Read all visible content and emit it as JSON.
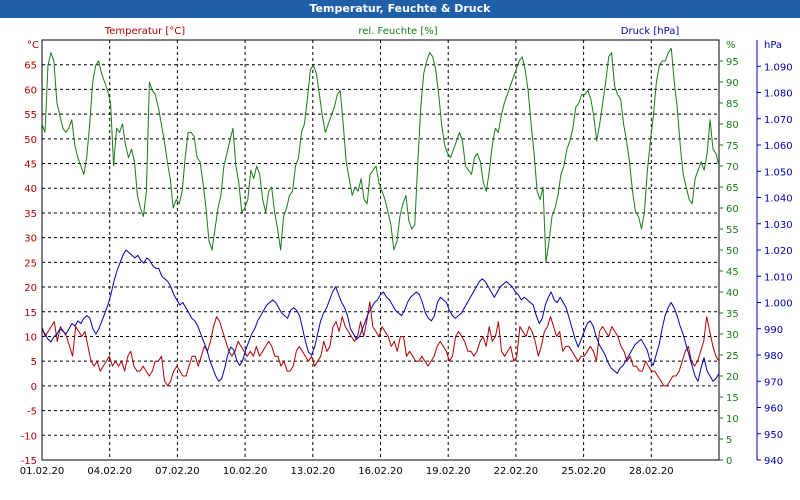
{
  "window": {
    "title": "Temperatur, Feuchte & Druck"
  },
  "chart_data": {
    "type": "line",
    "title": "Temperatur, Feuchte & Druck",
    "grid": true,
    "x_axis": {
      "range": [
        "01.02.20",
        "02.03.20"
      ],
      "tick_labels": [
        "01.02.20",
        "04.02.20",
        "07.02.20",
        "10.02.20",
        "13.02.20",
        "16.02.20",
        "19.02.20",
        "22.02.20",
        "25.02.20",
        "28.02.20"
      ]
    },
    "axes": {
      "temperature": {
        "label": "Temperatur [°C]",
        "unit": "°C",
        "range": [
          -15,
          70
        ],
        "ticks": [
          -15,
          -10,
          -5,
          0,
          5,
          10,
          15,
          20,
          25,
          30,
          35,
          40,
          45,
          50,
          55,
          60,
          65
        ],
        "color": "#b00000"
      },
      "humidity": {
        "label": "rel. Feuchte [%]",
        "unit": "%",
        "range": [
          0,
          100
        ],
        "ticks": [
          0,
          5,
          10,
          15,
          20,
          25,
          30,
          35,
          40,
          45,
          50,
          55,
          60,
          65,
          70,
          75,
          80,
          85,
          90,
          95
        ],
        "color": "#1a7a1a"
      },
      "pressure": {
        "label": "Druck [hPa]",
        "unit": "hPa",
        "range": [
          940,
          1100
        ],
        "ticks": [
          "940",
          "950",
          "960",
          "970",
          "980",
          "990",
          "1.000",
          "1.010",
          "1.020",
          "1.030",
          "1.040",
          "1.050",
          "1.060",
          "1.070",
          "1.080",
          "1.090"
        ],
        "color": "#0000b0"
      }
    },
    "series": [
      {
        "name": "Temperatur [°C]",
        "axis": "temperature",
        "color": "#b00000",
        "values": [
          12,
          10,
          11,
          12,
          13,
          9,
          12,
          11,
          10,
          8,
          6,
          12,
          11,
          10,
          11,
          8,
          5,
          4,
          5,
          3,
          4,
          5,
          6,
          4,
          5,
          4,
          5,
          3,
          6,
          7,
          4,
          3,
          3,
          4,
          3,
          2,
          3,
          5,
          5,
          6,
          1,
          0,
          1,
          3,
          4,
          3,
          2,
          2,
          4,
          6,
          6,
          4,
          6,
          8,
          7,
          9,
          12,
          14,
          13,
          11,
          9,
          7,
          6,
          7,
          9,
          8,
          7,
          6,
          7,
          6,
          8,
          6,
          7,
          8,
          9,
          8,
          6,
          6,
          4,
          5,
          3,
          3,
          4,
          7,
          8,
          7,
          6,
          5,
          6,
          4,
          5,
          6,
          9,
          7,
          8,
          12,
          13,
          11,
          14,
          12,
          11,
          10,
          9,
          10,
          13,
          10,
          13,
          17,
          12,
          11,
          10,
          12,
          11,
          10,
          8,
          9,
          7,
          10,
          10,
          6,
          7,
          6,
          5,
          5,
          6,
          5,
          4,
          5,
          6,
          8,
          9,
          8,
          7,
          5,
          6,
          10,
          11,
          10,
          9,
          7,
          7,
          6,
          7,
          9,
          10,
          8,
          12,
          9,
          10,
          13,
          7,
          6,
          7,
          8,
          5,
          6,
          12,
          11,
          10,
          12,
          11,
          9,
          6,
          8,
          11,
          12,
          14,
          12,
          10,
          11,
          7,
          8,
          8,
          7,
          6,
          5,
          6,
          6,
          7,
          8,
          7,
          5,
          11,
          12,
          11,
          10,
          12,
          11,
          10,
          8,
          7,
          5,
          6,
          4,
          4,
          3,
          3,
          5,
          4,
          3,
          3,
          2,
          1,
          0,
          0,
          1,
          2,
          2,
          3,
          5,
          7,
          8,
          5,
          4,
          5,
          7,
          9,
          14,
          11,
          8,
          6,
          5
        ]
      },
      {
        "name": "rel. Feuchte [%]",
        "axis": "humidity",
        "color": "#1a7a1a",
        "values": [
          80,
          78,
          94,
          97,
          95,
          85,
          82,
          79,
          78,
          79,
          81,
          75,
          72,
          70,
          68,
          72,
          80,
          90,
          94,
          95,
          92,
          90,
          88,
          85,
          70,
          79,
          78,
          80,
          75,
          72,
          74,
          71,
          63,
          60,
          58,
          64,
          90,
          88,
          87,
          84,
          80,
          76,
          71,
          67,
          60,
          62,
          61,
          64,
          72,
          78,
          78,
          77,
          72,
          71,
          66,
          60,
          52,
          50,
          55,
          60,
          63,
          70,
          73,
          76,
          79,
          70,
          66,
          59,
          60,
          62,
          69,
          67,
          70,
          68,
          62,
          59,
          64,
          65,
          59,
          55,
          50,
          58,
          60,
          63,
          64,
          70,
          72,
          78,
          80,
          86,
          93,
          94,
          92,
          87,
          82,
          78,
          80,
          82,
          84,
          87,
          88,
          80,
          71,
          67,
          63,
          65,
          64,
          67,
          62,
          61,
          68,
          69,
          70,
          66,
          64,
          62,
          59,
          56,
          50,
          52,
          58,
          61,
          63,
          57,
          55,
          56,
          71,
          84,
          92,
          95,
          97,
          96,
          93,
          87,
          80,
          75,
          73,
          72,
          74,
          76,
          78,
          76,
          70,
          69,
          68,
          72,
          73,
          71,
          66,
          64,
          69,
          75,
          79,
          78,
          82,
          85,
          87,
          89,
          91,
          93,
          95,
          96,
          93,
          88,
          80,
          73,
          64,
          62,
          65,
          47,
          52,
          58,
          60,
          63,
          68,
          70,
          74,
          76,
          79,
          84,
          85,
          87,
          87,
          88,
          86,
          82,
          76,
          80,
          85,
          90,
          96,
          97,
          89,
          87,
          86,
          80,
          76,
          71,
          64,
          59,
          58,
          55,
          59,
          69,
          76,
          82,
          90,
          94,
          95,
          95,
          97,
          98,
          90,
          84,
          75,
          68,
          65,
          62,
          61,
          67,
          69,
          71,
          69,
          73,
          81,
          74,
          73,
          70
        ]
      },
      {
        "name": "Druck [hPa]",
        "axis": "pressure",
        "color": "#0000b0",
        "values": [
          990,
          988,
          986,
          985,
          987,
          988,
          990,
          989,
          988,
          990,
          992,
          991,
          993,
          992,
          994,
          995,
          994,
          990,
          988,
          990,
          993,
          996,
          999,
          1003,
          1008,
          1012,
          1015,
          1018,
          1020,
          1019,
          1018,
          1017,
          1018,
          1016,
          1015,
          1017,
          1016,
          1014,
          1013,
          1013,
          1010,
          1009,
          1008,
          1006,
          1003,
          1001,
          999,
          1000,
          998,
          996,
          994,
          993,
          991,
          988,
          985,
          982,
          978,
          975,
          972,
          970,
          971,
          975,
          980,
          983,
          982,
          978,
          976,
          978,
          982,
          985,
          988,
          990,
          993,
          995,
          997,
          999,
          1000,
          1001,
          1000,
          998,
          996,
          995,
          994,
          997,
          998,
          997,
          995,
          990,
          985,
          981,
          980,
          983,
          988,
          993,
          996,
          998,
          1001,
          1004,
          1006,
          1003,
          1000,
          998,
          995,
          990,
          988,
          986,
          987,
          990,
          993,
          996,
          998,
          1000,
          1001,
          1003,
          1004,
          1002,
          1001,
          999,
          997,
          996,
          995,
          997,
          1000,
          1002,
          1003,
          1004,
          1003,
          1000,
          996,
          994,
          993,
          995,
          1000,
          1002,
          1001,
          1000,
          997,
          995,
          994,
          995,
          996,
          998,
          1000,
          1002,
          1004,
          1006,
          1008,
          1009,
          1008,
          1006,
          1004,
          1002,
          1004,
          1006,
          1007,
          1008,
          1007,
          1006,
          1004,
          1003,
          1001,
          1002,
          1001,
          1000,
          999,
          995,
          992,
          994,
          999,
          1002,
          1004,
          1001,
          1000,
          1002,
          1000,
          998,
          994,
          990,
          986,
          983,
          986,
          989,
          992,
          993,
          991,
          987,
          984,
          982,
          980,
          977,
          975,
          974,
          973,
          975,
          976,
          978,
          980,
          982,
          984,
          985,
          986,
          984,
          982,
          978,
          976,
          980,
          984,
          990,
          995,
          998,
          1000,
          998,
          995,
          991,
          988,
          984,
          980,
          976,
          972,
          970,
          975,
          979,
          974,
          972,
          970,
          971,
          973
        ]
      }
    ]
  }
}
